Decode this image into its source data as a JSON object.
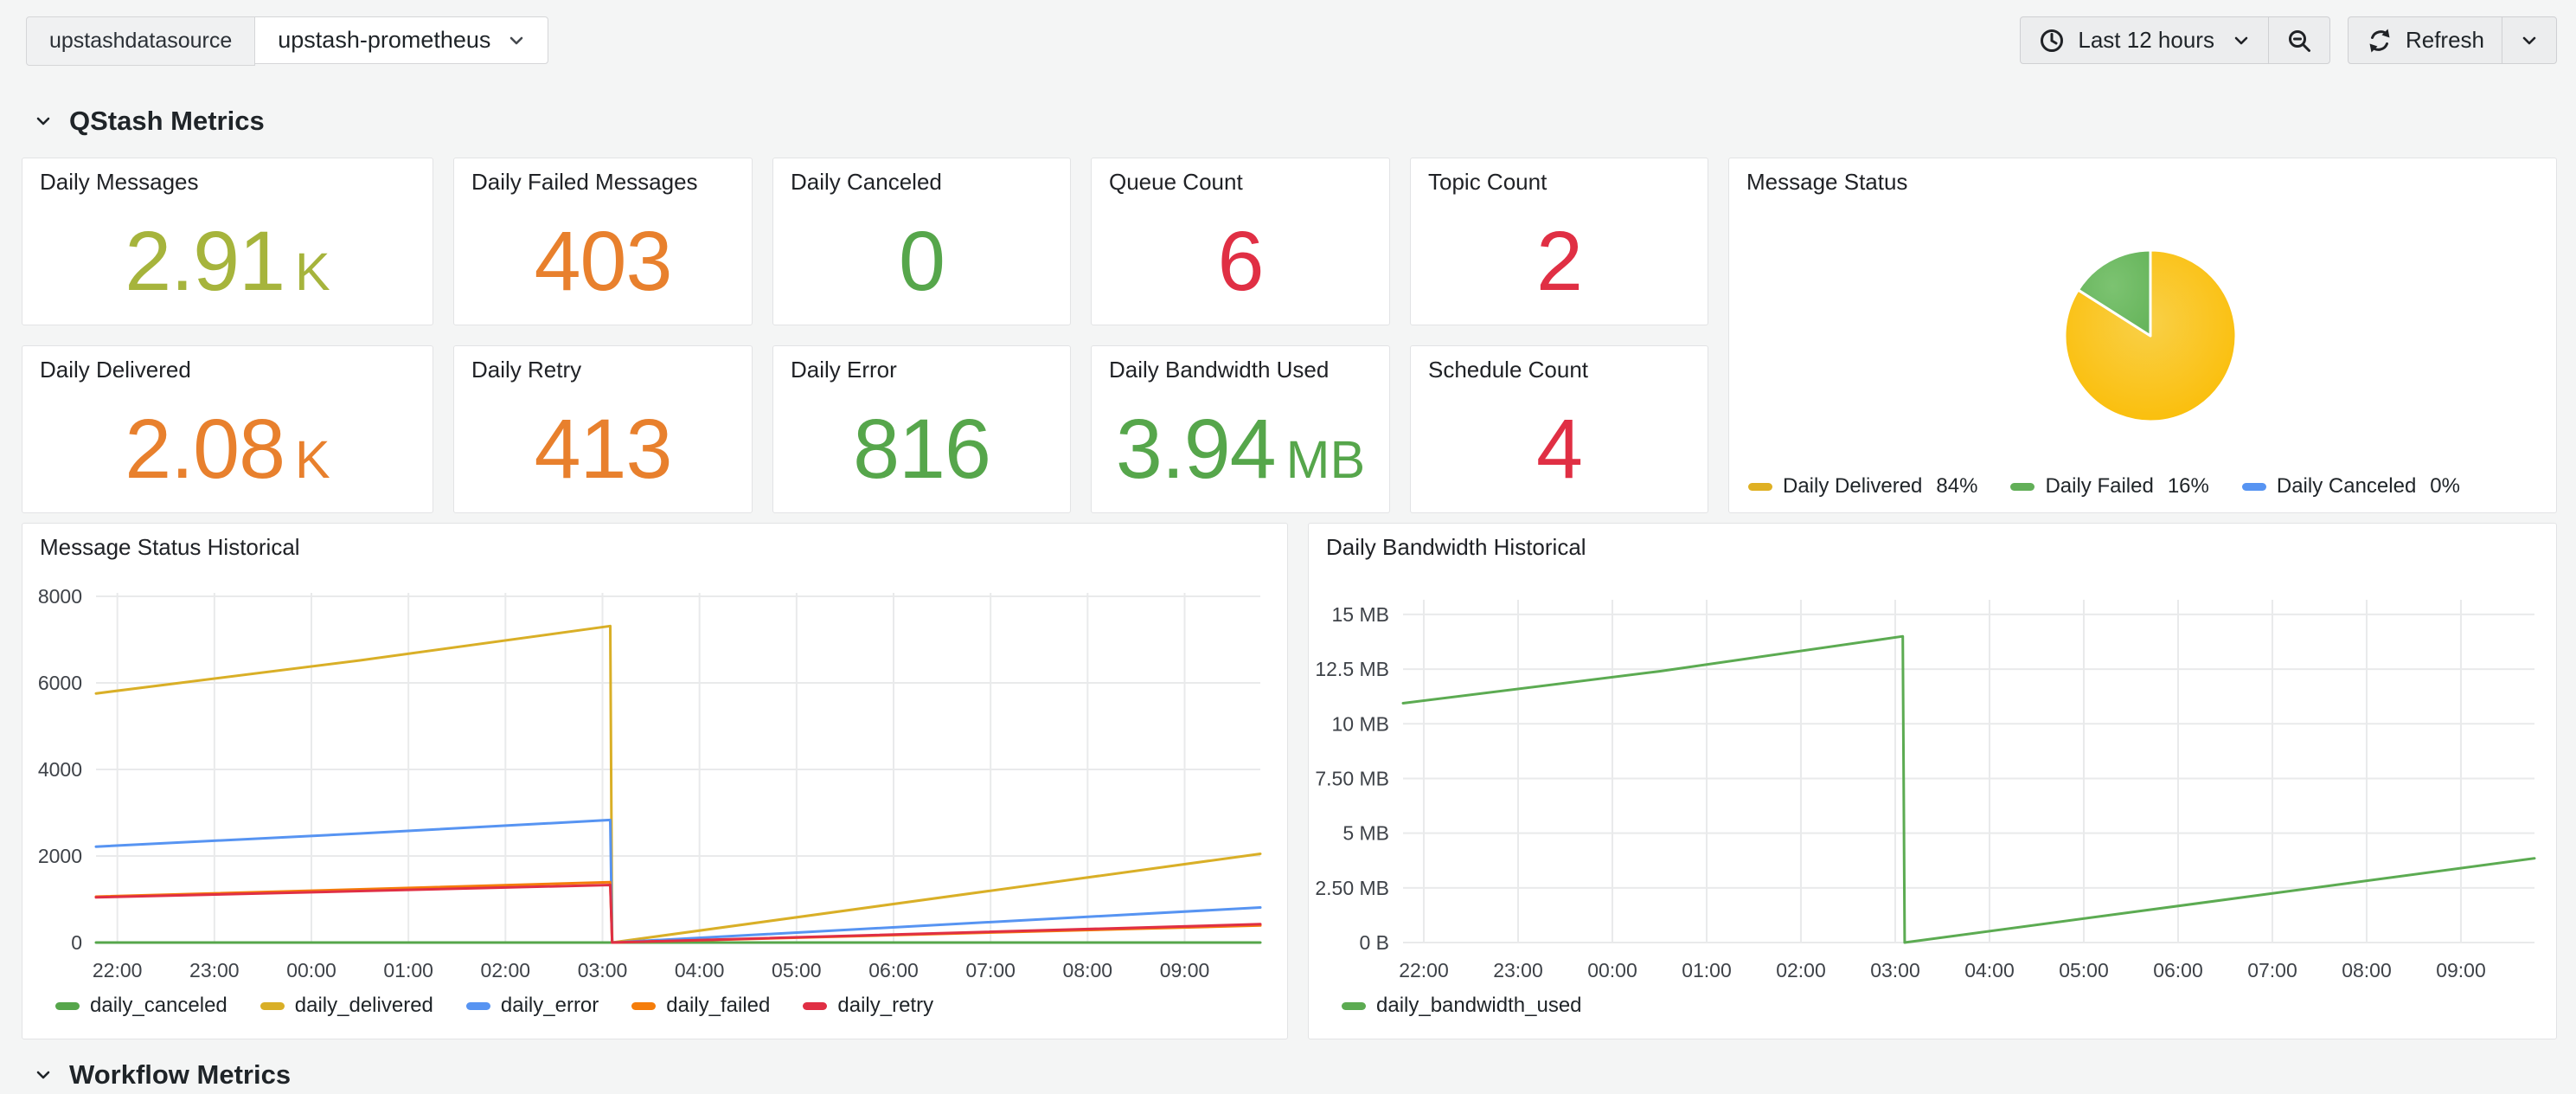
{
  "toolbar": {
    "datasource_label": "upstashdatasource",
    "datasource_value": "upstash-prometheus",
    "time_range": "Last 12 hours",
    "refresh_label": "Refresh"
  },
  "rows": {
    "qstash": "QStash Metrics",
    "workflow": "Workflow Metrics"
  },
  "stats": [
    {
      "title": "Daily Messages",
      "value": "2.91",
      "unit": "K",
      "color": "#A6B43C"
    },
    {
      "title": "Daily Failed Messages",
      "value": "403",
      "unit": "",
      "color": "#E8802D"
    },
    {
      "title": "Daily Canceled",
      "value": "0",
      "unit": "",
      "color": "#56A64B"
    },
    {
      "title": "Queue Count",
      "value": "6",
      "unit": "",
      "color": "#E02F44"
    },
    {
      "title": "Topic Count",
      "value": "2",
      "unit": "",
      "color": "#E02F44"
    },
    {
      "title": "Daily Delivered",
      "value": "2.08",
      "unit": "K",
      "color": "#E8802D"
    },
    {
      "title": "Daily Retry",
      "value": "413",
      "unit": "",
      "color": "#E8802D"
    },
    {
      "title": "Daily Error",
      "value": "816",
      "unit": "",
      "color": "#56A64B"
    },
    {
      "title": "Daily Bandwidth Used",
      "value": "3.94",
      "unit": "MB",
      "color": "#56A64B"
    },
    {
      "title": "Schedule Count",
      "value": "4",
      "unit": "",
      "color": "#E02F44"
    }
  ],
  "pie": {
    "title": "Message Status",
    "slices": [
      {
        "name": "Daily Delivered",
        "percent": "84%",
        "value": 84,
        "color": "#FBBD07",
        "legend_color": "#DFB023"
      },
      {
        "name": "Daily Failed",
        "percent": "16%",
        "value": 16,
        "color": "#6FBB64",
        "legend_color": "#62AF58"
      },
      {
        "name": "Daily Canceled",
        "percent": "0%",
        "value": 0,
        "color": "#5794F2",
        "legend_color": "#5794F2"
      }
    ]
  },
  "chart_data": [
    {
      "type": "line",
      "title": "Message Status Historical",
      "x_range": [
        21.78,
        33.78
      ],
      "y_range": [
        0,
        8080
      ],
      "x_ticks": [
        {
          "v": 22,
          "label": "22:00"
        },
        {
          "v": 23,
          "label": "23:00"
        },
        {
          "v": 24,
          "label": "00:00"
        },
        {
          "v": 25,
          "label": "01:00"
        },
        {
          "v": 26,
          "label": "02:00"
        },
        {
          "v": 27,
          "label": "03:00"
        },
        {
          "v": 28,
          "label": "04:00"
        },
        {
          "v": 29,
          "label": "05:00"
        },
        {
          "v": 30,
          "label": "06:00"
        },
        {
          "v": 31,
          "label": "07:00"
        },
        {
          "v": 32,
          "label": "08:00"
        },
        {
          "v": 33,
          "label": "09:00"
        }
      ],
      "y_ticks": [
        {
          "v": 0,
          "label": "0"
        },
        {
          "v": 2000,
          "label": "2000"
        },
        {
          "v": 4000,
          "label": "4000"
        },
        {
          "v": 6000,
          "label": "6000"
        },
        {
          "v": 8000,
          "label": "8000"
        }
      ],
      "legend_position": "bottom",
      "grid": true,
      "series": [
        {
          "name": "daily_canceled",
          "color": "#56A64B",
          "points": [
            [
              21.78,
              0
            ],
            [
              33.78,
              0
            ]
          ]
        },
        {
          "name": "daily_delivered",
          "color": "#D9AF27",
          "points": [
            [
              21.78,
              5756
            ],
            [
              24.5,
              6520
            ],
            [
              27.08,
              7314
            ],
            [
              27.1,
              0
            ],
            [
              33.78,
              2050
            ]
          ]
        },
        {
          "name": "daily_error",
          "color": "#5794F2",
          "points": [
            [
              21.78,
              2216
            ],
            [
              24.5,
              2520
            ],
            [
              27.08,
              2833
            ],
            [
              27.1,
              0
            ],
            [
              33.78,
              810
            ]
          ]
        },
        {
          "name": "daily_failed",
          "color": "#F57D0B",
          "points": [
            [
              21.78,
              1060
            ],
            [
              24.5,
              1230
            ],
            [
              27.08,
              1395
            ],
            [
              27.1,
              0
            ],
            [
              33.78,
              395
            ]
          ]
        },
        {
          "name": "daily_retry",
          "color": "#E02F44",
          "points": [
            [
              21.78,
              1045
            ],
            [
              24.5,
              1190
            ],
            [
              27.08,
              1330
            ],
            [
              27.1,
              0
            ],
            [
              33.78,
              425
            ]
          ]
        }
      ]
    },
    {
      "type": "line",
      "title": "Daily Bandwidth Historical",
      "x_range": [
        21.78,
        33.78
      ],
      "y_range": [
        0,
        15.67
      ],
      "x_ticks": [
        {
          "v": 22,
          "label": "22:00"
        },
        {
          "v": 23,
          "label": "23:00"
        },
        {
          "v": 24,
          "label": "00:00"
        },
        {
          "v": 25,
          "label": "01:00"
        },
        {
          "v": 26,
          "label": "02:00"
        },
        {
          "v": 27,
          "label": "03:00"
        },
        {
          "v": 28,
          "label": "04:00"
        },
        {
          "v": 29,
          "label": "05:00"
        },
        {
          "v": 30,
          "label": "06:00"
        },
        {
          "v": 31,
          "label": "07:00"
        },
        {
          "v": 32,
          "label": "08:00"
        },
        {
          "v": 33,
          "label": "09:00"
        }
      ],
      "y_ticks": [
        {
          "v": 0,
          "label": "0 B"
        },
        {
          "v": 2.5,
          "label": "2.50 MB"
        },
        {
          "v": 5,
          "label": "5 MB"
        },
        {
          "v": 7.5,
          "label": "7.50 MB"
        },
        {
          "v": 10,
          "label": "10 MB"
        },
        {
          "v": 12.5,
          "label": "12.5 MB"
        },
        {
          "v": 15,
          "label": "15 MB"
        }
      ],
      "legend_position": "bottom",
      "grid": true,
      "series": [
        {
          "name": "daily_bandwidth_used",
          "color": "#5CAB52",
          "points": [
            [
              21.78,
              10.94
            ],
            [
              24.5,
              12.4
            ],
            [
              27.08,
              14.0
            ],
            [
              27.1,
              0
            ],
            [
              33.78,
              3.85
            ]
          ]
        }
      ]
    }
  ]
}
